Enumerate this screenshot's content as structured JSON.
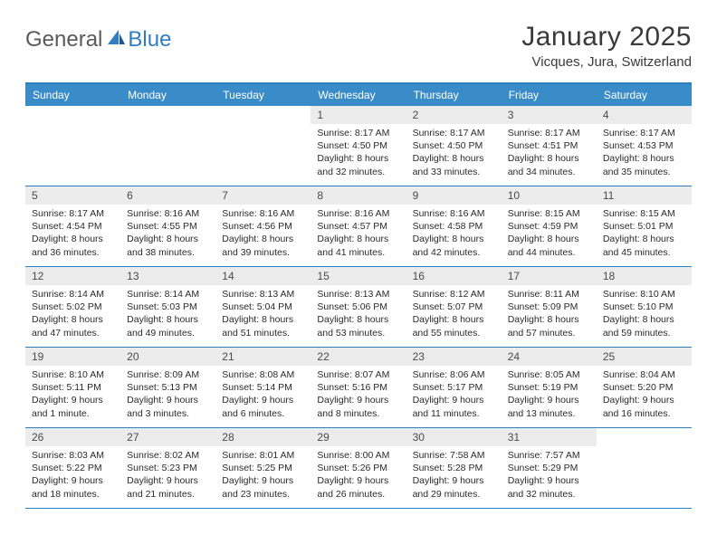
{
  "logo": {
    "text1": "General",
    "text2": "Blue"
  },
  "title": "January 2025",
  "subtitle": "Vicques, Jura, Switzerland",
  "colors": {
    "header_bg": "#3a8cc9",
    "border": "#2f7ec2",
    "daynum_bg": "#ececec",
    "text": "#3a3a3a"
  },
  "weekdays": [
    "Sunday",
    "Monday",
    "Tuesday",
    "Wednesday",
    "Thursday",
    "Friday",
    "Saturday"
  ],
  "weeks": [
    [
      null,
      null,
      null,
      {
        "n": "1",
        "sr": "8:17 AM",
        "ss": "4:50 PM",
        "dl": "8 hours and 32 minutes."
      },
      {
        "n": "2",
        "sr": "8:17 AM",
        "ss": "4:50 PM",
        "dl": "8 hours and 33 minutes."
      },
      {
        "n": "3",
        "sr": "8:17 AM",
        "ss": "4:51 PM",
        "dl": "8 hours and 34 minutes."
      },
      {
        "n": "4",
        "sr": "8:17 AM",
        "ss": "4:53 PM",
        "dl": "8 hours and 35 minutes."
      }
    ],
    [
      {
        "n": "5",
        "sr": "8:17 AM",
        "ss": "4:54 PM",
        "dl": "8 hours and 36 minutes."
      },
      {
        "n": "6",
        "sr": "8:16 AM",
        "ss": "4:55 PM",
        "dl": "8 hours and 38 minutes."
      },
      {
        "n": "7",
        "sr": "8:16 AM",
        "ss": "4:56 PM",
        "dl": "8 hours and 39 minutes."
      },
      {
        "n": "8",
        "sr": "8:16 AM",
        "ss": "4:57 PM",
        "dl": "8 hours and 41 minutes."
      },
      {
        "n": "9",
        "sr": "8:16 AM",
        "ss": "4:58 PM",
        "dl": "8 hours and 42 minutes."
      },
      {
        "n": "10",
        "sr": "8:15 AM",
        "ss": "4:59 PM",
        "dl": "8 hours and 44 minutes."
      },
      {
        "n": "11",
        "sr": "8:15 AM",
        "ss": "5:01 PM",
        "dl": "8 hours and 45 minutes."
      }
    ],
    [
      {
        "n": "12",
        "sr": "8:14 AM",
        "ss": "5:02 PM",
        "dl": "8 hours and 47 minutes."
      },
      {
        "n": "13",
        "sr": "8:14 AM",
        "ss": "5:03 PM",
        "dl": "8 hours and 49 minutes."
      },
      {
        "n": "14",
        "sr": "8:13 AM",
        "ss": "5:04 PM",
        "dl": "8 hours and 51 minutes."
      },
      {
        "n": "15",
        "sr": "8:13 AM",
        "ss": "5:06 PM",
        "dl": "8 hours and 53 minutes."
      },
      {
        "n": "16",
        "sr": "8:12 AM",
        "ss": "5:07 PM",
        "dl": "8 hours and 55 minutes."
      },
      {
        "n": "17",
        "sr": "8:11 AM",
        "ss": "5:09 PM",
        "dl": "8 hours and 57 minutes."
      },
      {
        "n": "18",
        "sr": "8:10 AM",
        "ss": "5:10 PM",
        "dl": "8 hours and 59 minutes."
      }
    ],
    [
      {
        "n": "19",
        "sr": "8:10 AM",
        "ss": "5:11 PM",
        "dl": "9 hours and 1 minute."
      },
      {
        "n": "20",
        "sr": "8:09 AM",
        "ss": "5:13 PM",
        "dl": "9 hours and 3 minutes."
      },
      {
        "n": "21",
        "sr": "8:08 AM",
        "ss": "5:14 PM",
        "dl": "9 hours and 6 minutes."
      },
      {
        "n": "22",
        "sr": "8:07 AM",
        "ss": "5:16 PM",
        "dl": "9 hours and 8 minutes."
      },
      {
        "n": "23",
        "sr": "8:06 AM",
        "ss": "5:17 PM",
        "dl": "9 hours and 11 minutes."
      },
      {
        "n": "24",
        "sr": "8:05 AM",
        "ss": "5:19 PM",
        "dl": "9 hours and 13 minutes."
      },
      {
        "n": "25",
        "sr": "8:04 AM",
        "ss": "5:20 PM",
        "dl": "9 hours and 16 minutes."
      }
    ],
    [
      {
        "n": "26",
        "sr": "8:03 AM",
        "ss": "5:22 PM",
        "dl": "9 hours and 18 minutes."
      },
      {
        "n": "27",
        "sr": "8:02 AM",
        "ss": "5:23 PM",
        "dl": "9 hours and 21 minutes."
      },
      {
        "n": "28",
        "sr": "8:01 AM",
        "ss": "5:25 PM",
        "dl": "9 hours and 23 minutes."
      },
      {
        "n": "29",
        "sr": "8:00 AM",
        "ss": "5:26 PM",
        "dl": "9 hours and 26 minutes."
      },
      {
        "n": "30",
        "sr": "7:58 AM",
        "ss": "5:28 PM",
        "dl": "9 hours and 29 minutes."
      },
      {
        "n": "31",
        "sr": "7:57 AM",
        "ss": "5:29 PM",
        "dl": "9 hours and 32 minutes."
      },
      null
    ]
  ],
  "labels": {
    "sunrise": "Sunrise:",
    "sunset": "Sunset:",
    "daylight": "Daylight:"
  }
}
